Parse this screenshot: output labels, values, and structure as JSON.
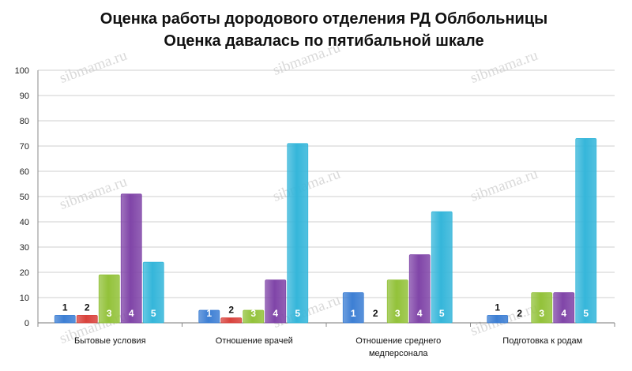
{
  "chart_data": {
    "type": "bar",
    "title": "Оценка работы дородового отделения РД Облбольницы",
    "subtitle": "Оценка давалась по пятибальной шкале",
    "categories": [
      [
        "Бытовые условия"
      ],
      [
        "Отношение врачей"
      ],
      [
        "Отношение среднего",
        "медперсонала"
      ],
      [
        "Подготовка к родам"
      ]
    ],
    "series": [
      {
        "name": "1",
        "values": [
          3,
          5,
          12,
          3
        ]
      },
      {
        "name": "2",
        "values": [
          3,
          2,
          0,
          0
        ]
      },
      {
        "name": "3",
        "values": [
          19,
          5,
          17,
          12
        ]
      },
      {
        "name": "4",
        "values": [
          51,
          17,
          27,
          12
        ]
      },
      {
        "name": "5",
        "values": [
          24,
          71,
          44,
          73
        ]
      }
    ],
    "ylim": [
      0,
      100
    ],
    "yticks": [
      0,
      10,
      20,
      30,
      40,
      50,
      60,
      70,
      80,
      90,
      100
    ],
    "grid": true,
    "series_colors": [
      "#3d7fd4",
      "#d9423c",
      "#93c23a",
      "#8045a8",
      "#35b6da"
    ],
    "xlabel": "",
    "ylabel": ""
  },
  "watermark": "sibmama.ru"
}
